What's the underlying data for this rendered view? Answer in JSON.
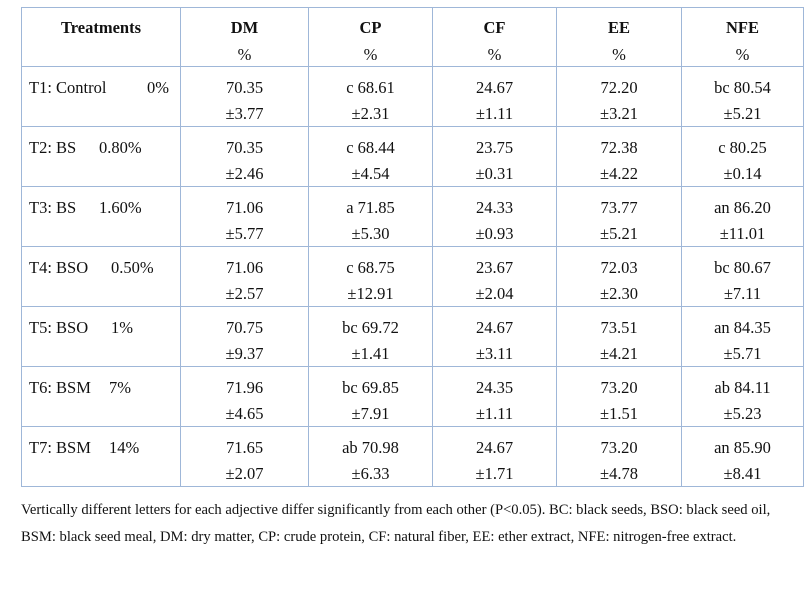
{
  "table": {
    "header": {
      "treatments": "Treatments",
      "columns": [
        {
          "name": "DM",
          "unit": "%"
        },
        {
          "name": "CP",
          "unit": "%"
        },
        {
          "name": "CF",
          "unit": "%"
        },
        {
          "name": "EE",
          "unit": "%"
        },
        {
          "name": "NFE",
          "unit": "%"
        }
      ]
    },
    "rows": [
      {
        "treatment": "T1: Control",
        "level": "0%",
        "cells": [
          [
            "70.35",
            "±3.77"
          ],
          [
            "c 68.61",
            "±2.31"
          ],
          [
            "24.67",
            "±1.11"
          ],
          [
            "72.20",
            "±3.21"
          ],
          [
            "bc 80.54",
            "±5.21"
          ]
        ]
      },
      {
        "treatment": "T2: BS",
        "level": "0.80%",
        "cells": [
          [
            "70.35",
            "±2.46"
          ],
          [
            "c 68.44",
            "±4.54"
          ],
          [
            "23.75",
            "±0.31"
          ],
          [
            "72.38",
            "±4.22"
          ],
          [
            "c 80.25",
            "±0.14"
          ]
        ]
      },
      {
        "treatment": "T3: BS",
        "level": "1.60%",
        "cells": [
          [
            "71.06",
            "±5.77"
          ],
          [
            "a 71.85",
            "±5.30"
          ],
          [
            "24.33",
            "±0.93"
          ],
          [
            "73.77",
            "±5.21"
          ],
          [
            "an 86.20",
            "±11.01"
          ]
        ]
      },
      {
        "treatment": "T4: BSO",
        "level": "0.50%",
        "cells": [
          [
            "71.06",
            "±2.57"
          ],
          [
            "c 68.75",
            "±12.91"
          ],
          [
            "23.67",
            "±2.04"
          ],
          [
            "72.03",
            "±2.30"
          ],
          [
            "bc 80.67",
            "±7.11"
          ]
        ]
      },
      {
        "treatment": "T5: BSO",
        "level": "1%",
        "cells": [
          [
            "70.75",
            "±9.37"
          ],
          [
            "bc 69.72",
            "±1.41"
          ],
          [
            "24.67",
            "±3.11"
          ],
          [
            "73.51",
            "±4.21"
          ],
          [
            "an 84.35",
            "±5.71"
          ]
        ]
      },
      {
        "treatment": "T6: BSM",
        "level": "7%",
        "cells": [
          [
            "71.96",
            "±4.65"
          ],
          [
            "bc 69.85",
            "±7.91"
          ],
          [
            "24.35",
            "±1.11"
          ],
          [
            "73.20",
            "±1.51"
          ],
          [
            "ab 84.11",
            "±5.23"
          ]
        ]
      },
      {
        "treatment": "T7: BSM",
        "level": "14%",
        "cells": [
          [
            "71.65",
            "±2.07"
          ],
          [
            "ab 70.98",
            "±6.33"
          ],
          [
            "24.67",
            "±1.71"
          ],
          [
            "73.20",
            "±4.78"
          ],
          [
            "an 85.90",
            "±8.41"
          ]
        ]
      }
    ]
  },
  "footnote": "Vertically different letters for each adjective differ significantly from each other (P<0.05). BC: black seeds, BSO: black seed oil, BSM: black seed meal, DM: dry matter, CP: crude protein, CF: natural fiber, EE: ether extract, NFE: nitrogen-free extract."
}
